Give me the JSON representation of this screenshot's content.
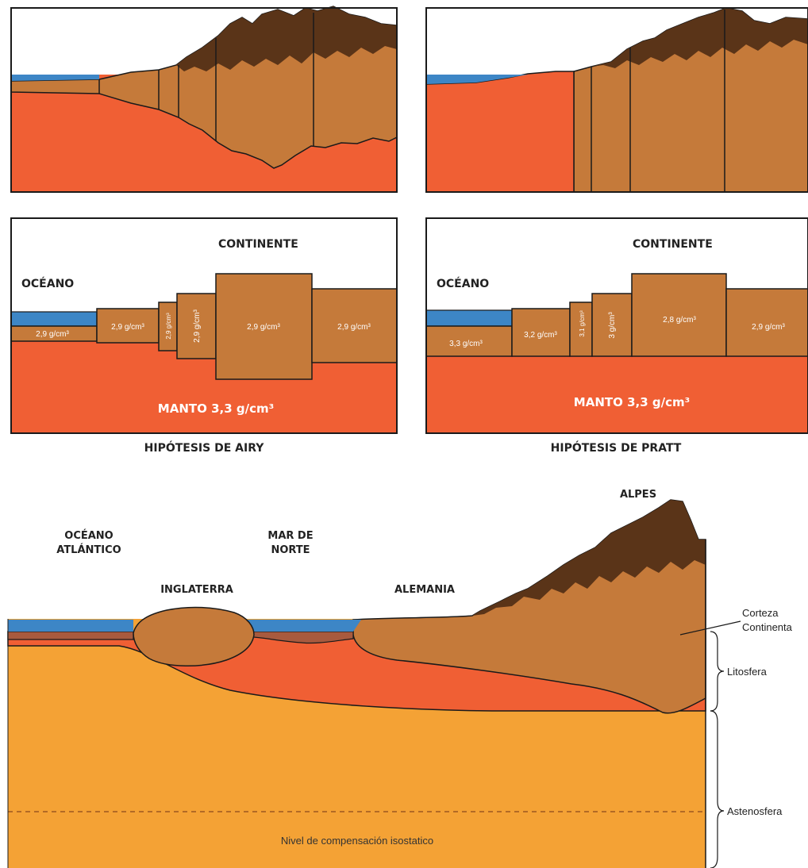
{
  "colors": {
    "ocean": "#3d86c6",
    "crust": "#c57a3a",
    "mountain_dark": "#5a3418",
    "mantle": "#f05f34",
    "oceanic_crust": "#a85a3e",
    "asthenosphere": "#f4a235",
    "outline": "#1a1a1a",
    "text_white": "#ffffff",
    "text_dark": "#222222"
  },
  "airy": {
    "ocean_label": "OCÉANO",
    "continent_label": "CONTINENTE",
    "densities": [
      "2,9 g/cm³",
      "2,9 g/cm³",
      "2,9 g/cm³",
      "2,9 g/cm³",
      "2,9 g/cm³",
      "2,9 g/cm³"
    ],
    "mantle_label": "MANTO 3,3 g/cm³",
    "title": "HIPÓTESIS DE AIRY"
  },
  "pratt": {
    "ocean_label": "OCÉANO",
    "continent_label": "CONTINENTE",
    "densities": [
      "3,3 g/cm³",
      "3,2 g/cm³",
      "3,1 g/cm³",
      "3 g/cm³",
      "2,8 g/cm³",
      "2,9 g/cm³"
    ],
    "mantle_label": "MANTO 3,3 g/cm³",
    "title": "HIPÓTESIS DE PRATT"
  },
  "profile": {
    "places": {
      "atlantic_line1": "OCÉANO",
      "atlantic_line2": "ATLÁNTICO",
      "north_sea_line1": "MAR DE",
      "north_sea_line2": "NORTE",
      "england": "INGLATERRA",
      "germany": "ALEMANIA",
      "alps": "ALPES"
    },
    "crust_label_line1": "Corteza",
    "crust_label_line2": "Continenta",
    "lithosphere_label": "Litosfera",
    "asthenosphere_label": "Astenosfera",
    "compensation_label": "Nivel de compensación isostatico"
  }
}
